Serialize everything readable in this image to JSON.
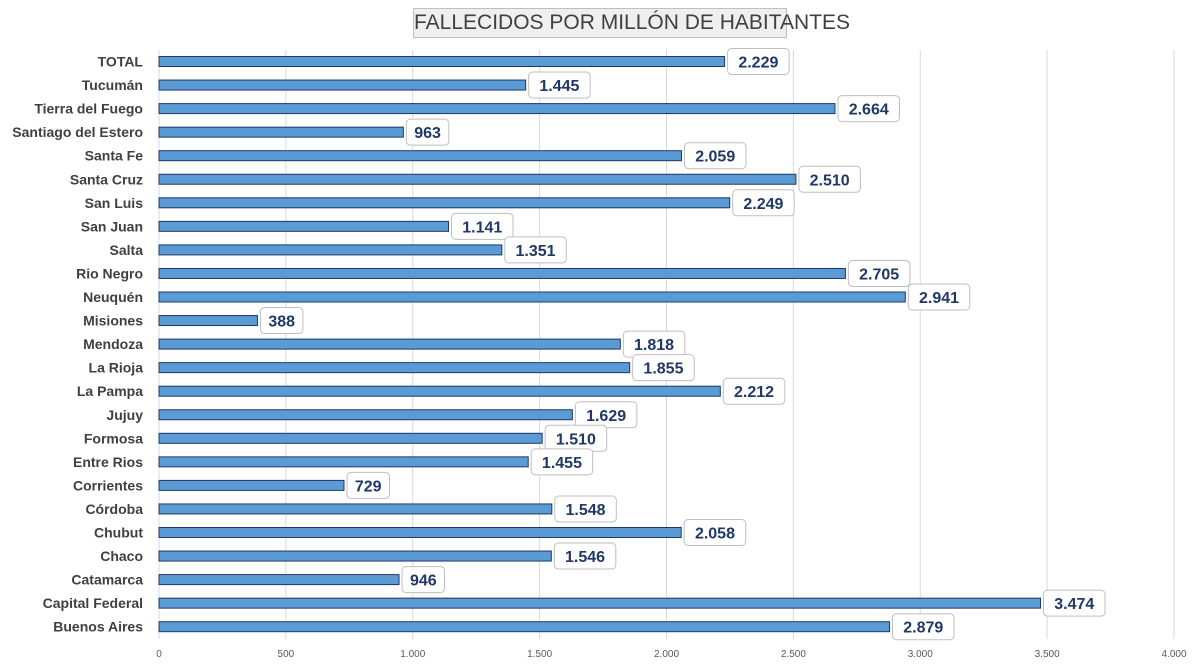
{
  "chart_data": {
    "type": "bar",
    "orientation": "horizontal",
    "title": "FALLECIDOS POR MILLÓN DE HABITANTES",
    "categories": [
      "TOTAL",
      "Tucumán",
      "Tierra del Fuego",
      "Santiago del Estero",
      "Santa Fe",
      "Santa Cruz",
      "San Luis",
      "San Juan",
      "Salta",
      "Rio Negro",
      "Neuquén",
      "Misiones",
      "Mendoza",
      "La Rioja",
      "La Pampa",
      "Jujuy",
      "Formosa",
      "Entre Rios",
      "Corrientes",
      "Córdoba",
      "Chubut",
      "Chaco",
      "Catamarca",
      "Capital Federal",
      "Buenos Aires"
    ],
    "values": [
      2229,
      1445,
      2664,
      963,
      2059,
      2510,
      2249,
      1141,
      1351,
      2705,
      2941,
      388,
      1818,
      1855,
      2212,
      1629,
      1510,
      1455,
      729,
      1548,
      2058,
      1546,
      946,
      3474,
      2879
    ],
    "value_labels": [
      "2.229",
      "1.445",
      "2.664",
      "963",
      "2.059",
      "2.510",
      "2.249",
      "1.141",
      "1.351",
      "2.705",
      "2.941",
      "388",
      "1.818",
      "1.855",
      "2.212",
      "1.629",
      "1.510",
      "1.455",
      "729",
      "1.548",
      "2.058",
      "1.546",
      "946",
      "3.474",
      "2.879"
    ],
    "xlim": [
      0,
      4000
    ],
    "x_ticks": [
      0,
      500,
      1000,
      1500,
      2000,
      2500,
      3000,
      3500,
      4000
    ],
    "x_tick_labels": [
      "0",
      "500",
      "1.000",
      "1.500",
      "2.000",
      "2.500",
      "3.000",
      "3.500",
      "4.000"
    ],
    "grid": true,
    "legend": "none",
    "colors": {
      "bar_fill": "#5b9bd5",
      "bar_stroke": "#1f3864",
      "label_text": "#1f3864",
      "gridline": "#d9d9d9"
    }
  }
}
